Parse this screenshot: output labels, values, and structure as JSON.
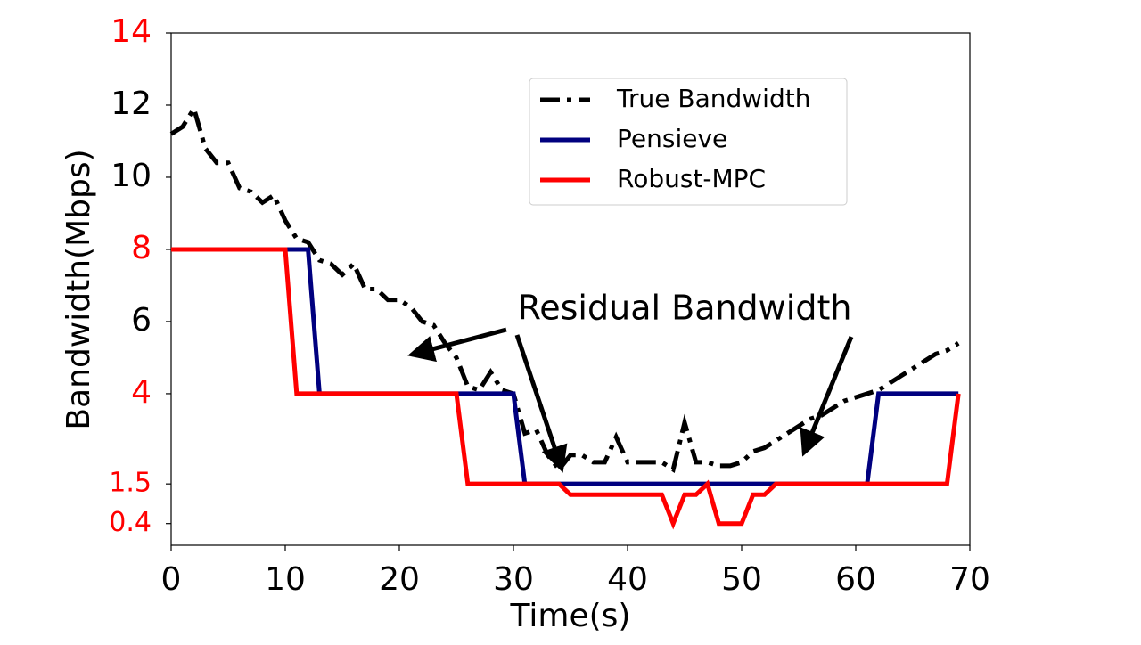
{
  "chart_data": {
    "type": "line",
    "xlabel": "Time(s)",
    "ylabel": "Bandwidth(Mbps)",
    "xlim": [
      0,
      70
    ],
    "ylim": [
      -0.2,
      14
    ],
    "xticks": [
      0,
      10,
      20,
      30,
      40,
      50,
      60,
      70
    ],
    "yticks": [
      0.4,
      1.5,
      4,
      6,
      8,
      10,
      12,
      14
    ],
    "ytick_colors": [
      "#ff0000",
      "#ff0000",
      "#ff0000",
      "#000000",
      "#ff0000",
      "#000000",
      "#000000",
      "#ff0000"
    ],
    "grid": false,
    "legend": "upper right",
    "annotation": "Residual Bandwidth",
    "series": [
      {
        "name": "True Bandwidth",
        "color": "#000000",
        "linestyle": "dashdot",
        "x": [
          0,
          1,
          2,
          3,
          4,
          5,
          6,
          7,
          8,
          9,
          10,
          11,
          12,
          13,
          14,
          15,
          16,
          17,
          18,
          19,
          20,
          21,
          22,
          23,
          24,
          25,
          26,
          27,
          28,
          29,
          30,
          31,
          32,
          33,
          34,
          35,
          36,
          37,
          38,
          39,
          40,
          41,
          42,
          43,
          44,
          45,
          46,
          47,
          48,
          49,
          50,
          51,
          52,
          53,
          54,
          55,
          56,
          57,
          58,
          59,
          60,
          61,
          62,
          63,
          64,
          65,
          66,
          67,
          68,
          69
        ],
        "values": [
          11.2,
          11.4,
          11.9,
          10.8,
          10.4,
          10.4,
          9.7,
          9.6,
          9.3,
          9.5,
          8.8,
          8.3,
          8.2,
          7.7,
          7.6,
          7.3,
          7.6,
          6.9,
          6.9,
          6.6,
          6.6,
          6.4,
          6.0,
          5.9,
          5.4,
          5.0,
          4.2,
          4.1,
          4.6,
          4.1,
          4.0,
          2.9,
          3.0,
          2.3,
          1.9,
          2.3,
          2.3,
          2.1,
          2.1,
          2.8,
          2.1,
          2.1,
          2.1,
          2.1,
          1.9,
          3.2,
          2.1,
          2.1,
          2.0,
          2.0,
          2.1,
          2.4,
          2.5,
          2.7,
          2.9,
          3.1,
          3.3,
          3.4,
          3.6,
          3.8,
          3.9,
          4.0,
          4.1,
          4.3,
          4.5,
          4.7,
          4.9,
          5.1,
          5.2,
          5.4
        ]
      },
      {
        "name": "Pensieve",
        "color": "#00007f",
        "linestyle": "solid",
        "x": [
          0,
          12,
          13,
          30,
          31,
          61,
          62,
          69
        ],
        "values": [
          8,
          8,
          4,
          4,
          1.5,
          1.5,
          4,
          4
        ]
      },
      {
        "name": "Robust-MPC",
        "color": "#ff0000",
        "linestyle": "solid",
        "x": [
          0,
          10,
          11,
          25,
          26,
          34,
          35,
          43,
          44,
          45,
          46,
          47,
          48,
          50,
          51,
          52,
          53,
          68,
          69
        ],
        "values": [
          8,
          8,
          4,
          4,
          1.5,
          1.5,
          1.2,
          1.2,
          0.4,
          1.2,
          1.2,
          1.5,
          0.4,
          0.4,
          1.2,
          1.2,
          1.5,
          1.5,
          4
        ]
      }
    ]
  }
}
